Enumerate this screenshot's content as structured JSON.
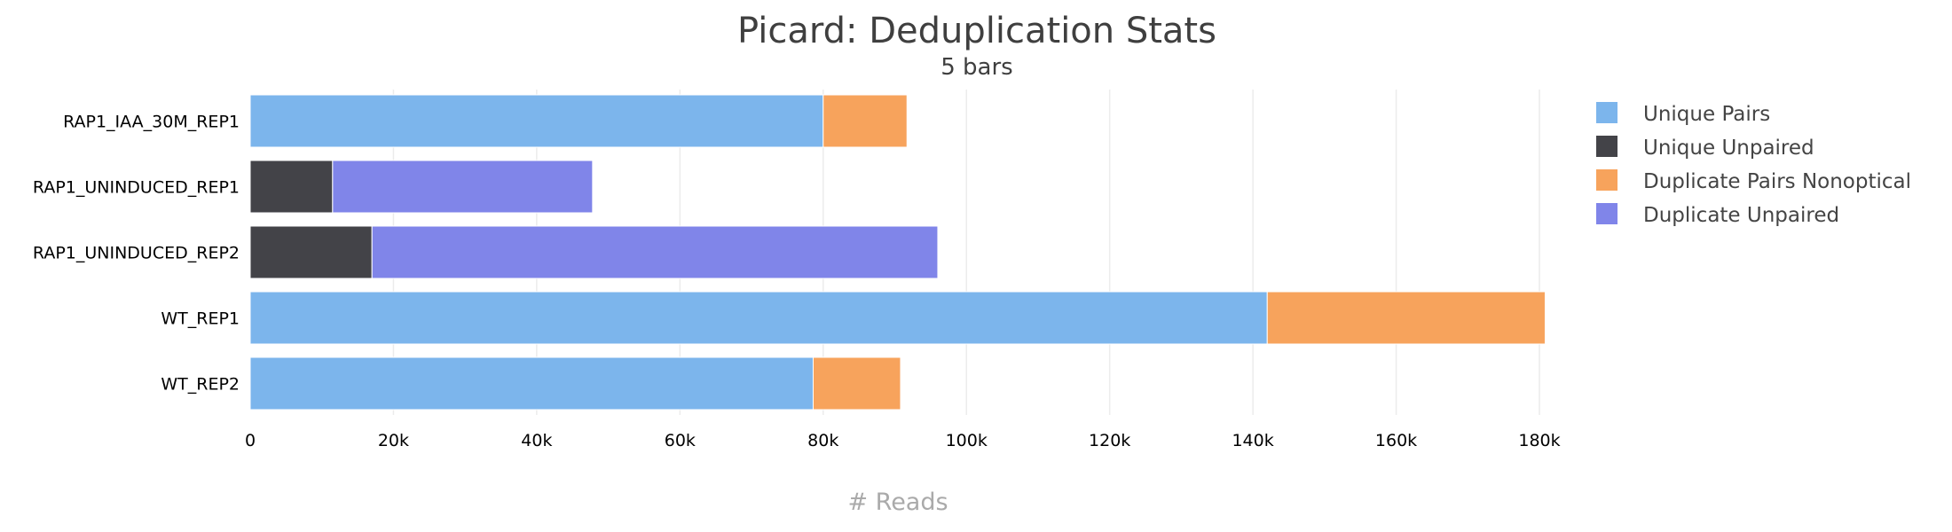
{
  "chart_data": {
    "type": "bar",
    "orientation": "horizontal",
    "stacked": true,
    "title": "Picard: Deduplication Stats",
    "subtitle": "5 bars",
    "xlabel": "# Reads",
    "ylabel": "",
    "xlim": [
      0,
      180000
    ],
    "x_ticks": [
      0,
      20000,
      40000,
      60000,
      80000,
      100000,
      120000,
      140000,
      160000,
      180000
    ],
    "x_tick_labels": [
      "0",
      "20k",
      "40k",
      "60k",
      "80k",
      "100k",
      "120k",
      "140k",
      "160k",
      "180k"
    ],
    "grid": true,
    "legend_position": "right",
    "categories": [
      "RAP1_IAA_30M_REP1",
      "RAP1_UNINDUCED_REP1",
      "RAP1_UNINDUCED_REP2",
      "WT_REP1",
      "WT_REP2"
    ],
    "series": [
      {
        "name": "Unique Pairs",
        "color": "#7cb5ec",
        "values": [
          80000,
          0,
          0,
          142000,
          78600
        ]
      },
      {
        "name": "Unique Unpaired",
        "color": "#434348",
        "values": [
          0,
          11500,
          17000,
          0,
          0
        ]
      },
      {
        "name": "Duplicate Pairs Nonoptical",
        "color": "#f7a35c",
        "values": [
          11700,
          0,
          0,
          38800,
          12200
        ]
      },
      {
        "name": "Duplicate Unpaired",
        "color": "#8085e9",
        "values": [
          0,
          36300,
          79000,
          0,
          0
        ]
      }
    ]
  }
}
